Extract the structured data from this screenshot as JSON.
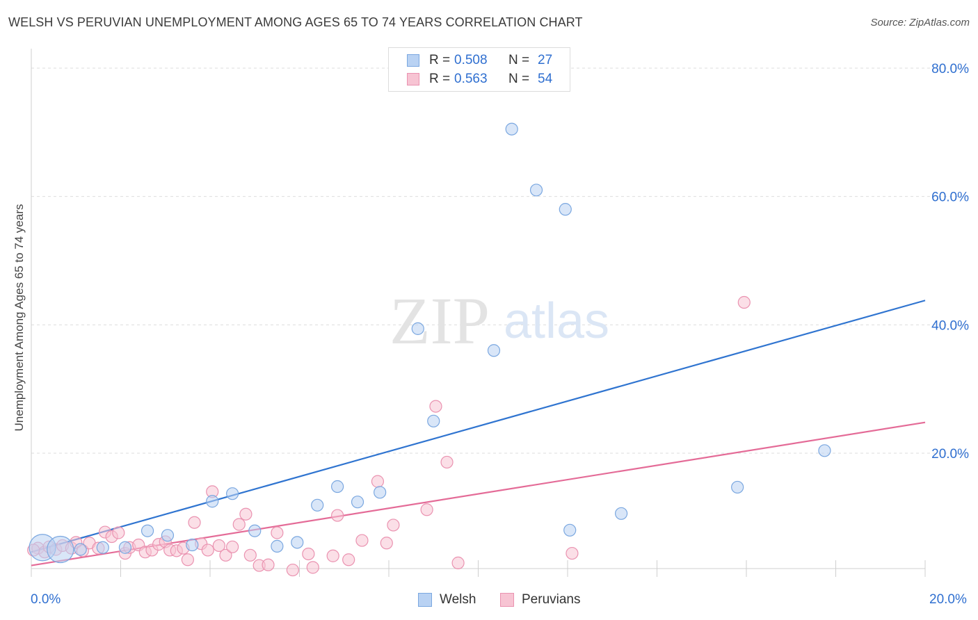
{
  "title": "WELSH VS PERUVIAN UNEMPLOYMENT AMONG AGES 65 TO 74 YEARS CORRELATION CHART",
  "source": "Source: ZipAtlas.com",
  "watermark": {
    "zip": "ZIP",
    "atlas": "atlas"
  },
  "legend": {
    "rows": [
      {
        "r_label": "R =",
        "r_value": "0.508",
        "n_label": "N =",
        "n_value": "27"
      },
      {
        "r_label": "R =",
        "r_value": "0.563",
        "n_label": "N =",
        "n_value": "54"
      }
    ]
  },
  "bottom_legend": {
    "welsh": "Welsh",
    "peruvians": "Peruvians"
  },
  "colors": {
    "welsh_fill": "#b9d2f3",
    "welsh_stroke": "#7aa7e0",
    "welsh_line": "#2f74d0",
    "peru_fill": "#f7c4d3",
    "peru_stroke": "#ea92b0",
    "peru_line": "#e46b97",
    "tick_text": "#2f6fd0",
    "grid": "#dddddd"
  },
  "chart_data": {
    "type": "scatter",
    "title": "WELSH VS PERUVIAN UNEMPLOYMENT AMONG AGES 65 TO 74 YEARS CORRELATION CHART",
    "xlabel": "",
    "ylabel": "Unemployment Among Ages 65 to 74 years",
    "xlim": [
      0,
      20
    ],
    "ylim": [
      0,
      82
    ],
    "x_tick_labels": [
      "0.0%",
      "20.0%"
    ],
    "y_ticks": [
      20,
      40,
      60,
      80
    ],
    "y_tick_labels": [
      "20.0%",
      "40.0%",
      "60.0%",
      "80.0%"
    ],
    "series": [
      {
        "name": "Welsh",
        "R": 0.508,
        "N": 27,
        "trend": {
          "x": [
            0,
            20
          ],
          "y": [
            4.6,
            43.8
          ]
        },
        "points": [
          {
            "x": 0.25,
            "y": 5.3,
            "big": true
          },
          {
            "x": 0.65,
            "y": 5.0,
            "big": true
          },
          {
            "x": 1.1,
            "y": 5.0
          },
          {
            "x": 1.6,
            "y": 5.3
          },
          {
            "x": 2.1,
            "y": 5.3
          },
          {
            "x": 2.6,
            "y": 7.9
          },
          {
            "x": 3.05,
            "y": 7.2
          },
          {
            "x": 3.6,
            "y": 5.7
          },
          {
            "x": 4.05,
            "y": 12.5
          },
          {
            "x": 4.5,
            "y": 13.7
          },
          {
            "x": 5.0,
            "y": 7.9
          },
          {
            "x": 5.5,
            "y": 5.5
          },
          {
            "x": 5.95,
            "y": 6.1
          },
          {
            "x": 6.4,
            "y": 11.9
          },
          {
            "x": 6.85,
            "y": 14.8
          },
          {
            "x": 7.3,
            "y": 12.4
          },
          {
            "x": 7.8,
            "y": 13.9
          },
          {
            "x": 8.65,
            "y": 39.4
          },
          {
            "x": 9.0,
            "y": 25.0
          },
          {
            "x": 10.35,
            "y": 36.0
          },
          {
            "x": 10.75,
            "y": 70.5
          },
          {
            "x": 11.3,
            "y": 61.0
          },
          {
            "x": 11.95,
            "y": 58.0
          },
          {
            "x": 12.05,
            "y": 8.0
          },
          {
            "x": 13.2,
            "y": 10.6
          },
          {
            "x": 15.8,
            "y": 14.7
          },
          {
            "x": 17.75,
            "y": 20.4
          }
        ]
      },
      {
        "name": "Peruvians",
        "R": 0.563,
        "N": 54,
        "trend": {
          "x": [
            0,
            20
          ],
          "y": [
            2.5,
            24.8
          ]
        },
        "points": [
          {
            "x": 0.15,
            "y": 5.2
          },
          {
            "x": 0.3,
            "y": 4.6
          },
          {
            "x": 0.4,
            "y": 5.4
          },
          {
            "x": 0.55,
            "y": 5.0
          },
          {
            "x": 0.7,
            "y": 5.6
          },
          {
            "x": 0.9,
            "y": 5.2
          },
          {
            "x": 1.0,
            "y": 6.1
          },
          {
            "x": 1.15,
            "y": 4.8
          },
          {
            "x": 1.3,
            "y": 6.0
          },
          {
            "x": 1.5,
            "y": 5.2
          },
          {
            "x": 1.65,
            "y": 7.7
          },
          {
            "x": 1.8,
            "y": 7.0
          },
          {
            "x": 1.95,
            "y": 7.6
          },
          {
            "x": 2.1,
            "y": 4.4
          },
          {
            "x": 2.2,
            "y": 5.3
          },
          {
            "x": 2.4,
            "y": 5.7
          },
          {
            "x": 2.55,
            "y": 4.6
          },
          {
            "x": 2.7,
            "y": 4.9
          },
          {
            "x": 2.85,
            "y": 5.8
          },
          {
            "x": 3.0,
            "y": 6.2
          },
          {
            "x": 3.1,
            "y": 4.9
          },
          {
            "x": 3.25,
            "y": 4.8
          },
          {
            "x": 3.4,
            "y": 5.2
          },
          {
            "x": 3.5,
            "y": 3.4
          },
          {
            "x": 3.65,
            "y": 9.2
          },
          {
            "x": 3.8,
            "y": 5.9
          },
          {
            "x": 3.95,
            "y": 4.9
          },
          {
            "x": 4.05,
            "y": 14.0
          },
          {
            "x": 4.2,
            "y": 5.6
          },
          {
            "x": 4.35,
            "y": 4.1
          },
          {
            "x": 4.5,
            "y": 5.4
          },
          {
            "x": 4.65,
            "y": 8.9
          },
          {
            "x": 4.8,
            "y": 10.5
          },
          {
            "x": 4.9,
            "y": 4.1
          },
          {
            "x": 5.1,
            "y": 2.5
          },
          {
            "x": 5.3,
            "y": 2.6
          },
          {
            "x": 5.5,
            "y": 7.6
          },
          {
            "x": 5.85,
            "y": 1.8
          },
          {
            "x": 6.2,
            "y": 4.3
          },
          {
            "x": 6.3,
            "y": 2.2
          },
          {
            "x": 6.75,
            "y": 4.0
          },
          {
            "x": 6.85,
            "y": 10.3
          },
          {
            "x": 7.1,
            "y": 3.4
          },
          {
            "x": 7.4,
            "y": 6.4
          },
          {
            "x": 7.75,
            "y": 15.6
          },
          {
            "x": 7.95,
            "y": 6.0
          },
          {
            "x": 8.1,
            "y": 8.8
          },
          {
            "x": 8.85,
            "y": 11.2
          },
          {
            "x": 9.05,
            "y": 27.3
          },
          {
            "x": 9.3,
            "y": 18.6
          },
          {
            "x": 9.55,
            "y": 2.9
          },
          {
            "x": 12.1,
            "y": 4.4
          },
          {
            "x": 15.95,
            "y": 43.5
          },
          {
            "x": 0.05,
            "y": 4.9
          }
        ]
      }
    ]
  }
}
